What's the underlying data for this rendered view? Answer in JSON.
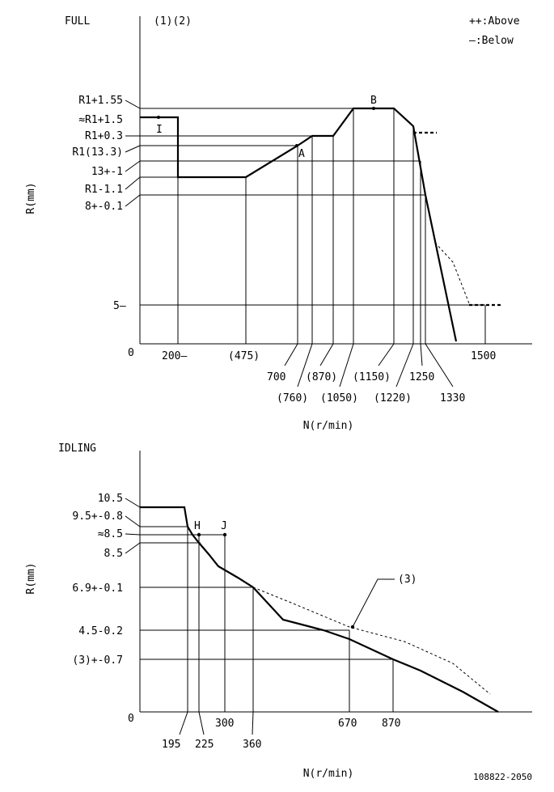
{
  "full": {
    "title": "FULL",
    "refs": "(1)(2)",
    "legend_above": "++:Above",
    "legend_below": "—:Below",
    "ylabel": "R(mm)",
    "xlabel": "N(r/min)",
    "origin": "0",
    "yticks": {
      "r1_155": "R1+1.55",
      "r1_15": "≈R1+1.5",
      "r1_03": "R1+0.3",
      "r1_133": "R1(13.3)",
      "v13": "13+-1",
      "r1_m11": "R1-1.1",
      "v8": "8+-0.1",
      "v5": "5—"
    },
    "xticks": {
      "x200": "200—",
      "x475": "(475)",
      "x700": "700",
      "x760": "(760)",
      "x870": "(870)",
      "x1050": "(1050)",
      "x1150": "(1150)",
      "x1220": "(1220)",
      "x1250": "1250",
      "x1330": "1330",
      "x1500": "1500"
    },
    "points": {
      "a": "A",
      "b": "B",
      "i": "I"
    }
  },
  "idling": {
    "title": "IDLING",
    "ylabel": "R(mm)",
    "xlabel": "N(r/min)",
    "origin": "0",
    "yticks": {
      "v105": "10.5",
      "v95": "9.5+-0.8",
      "v85a": "≈8.5",
      "v85": "8.5",
      "v69": "6.9+-0.1",
      "v45": "4.5-0.2",
      "v3": "(3)+-0.7"
    },
    "xticks": {
      "x195": "195",
      "x225": "225",
      "x300": "300",
      "x360": "360",
      "x670": "670",
      "x870": "870"
    },
    "points": {
      "h": "H",
      "j": "J"
    },
    "callout": "(3)"
  },
  "footer_code": "108822-2050"
}
